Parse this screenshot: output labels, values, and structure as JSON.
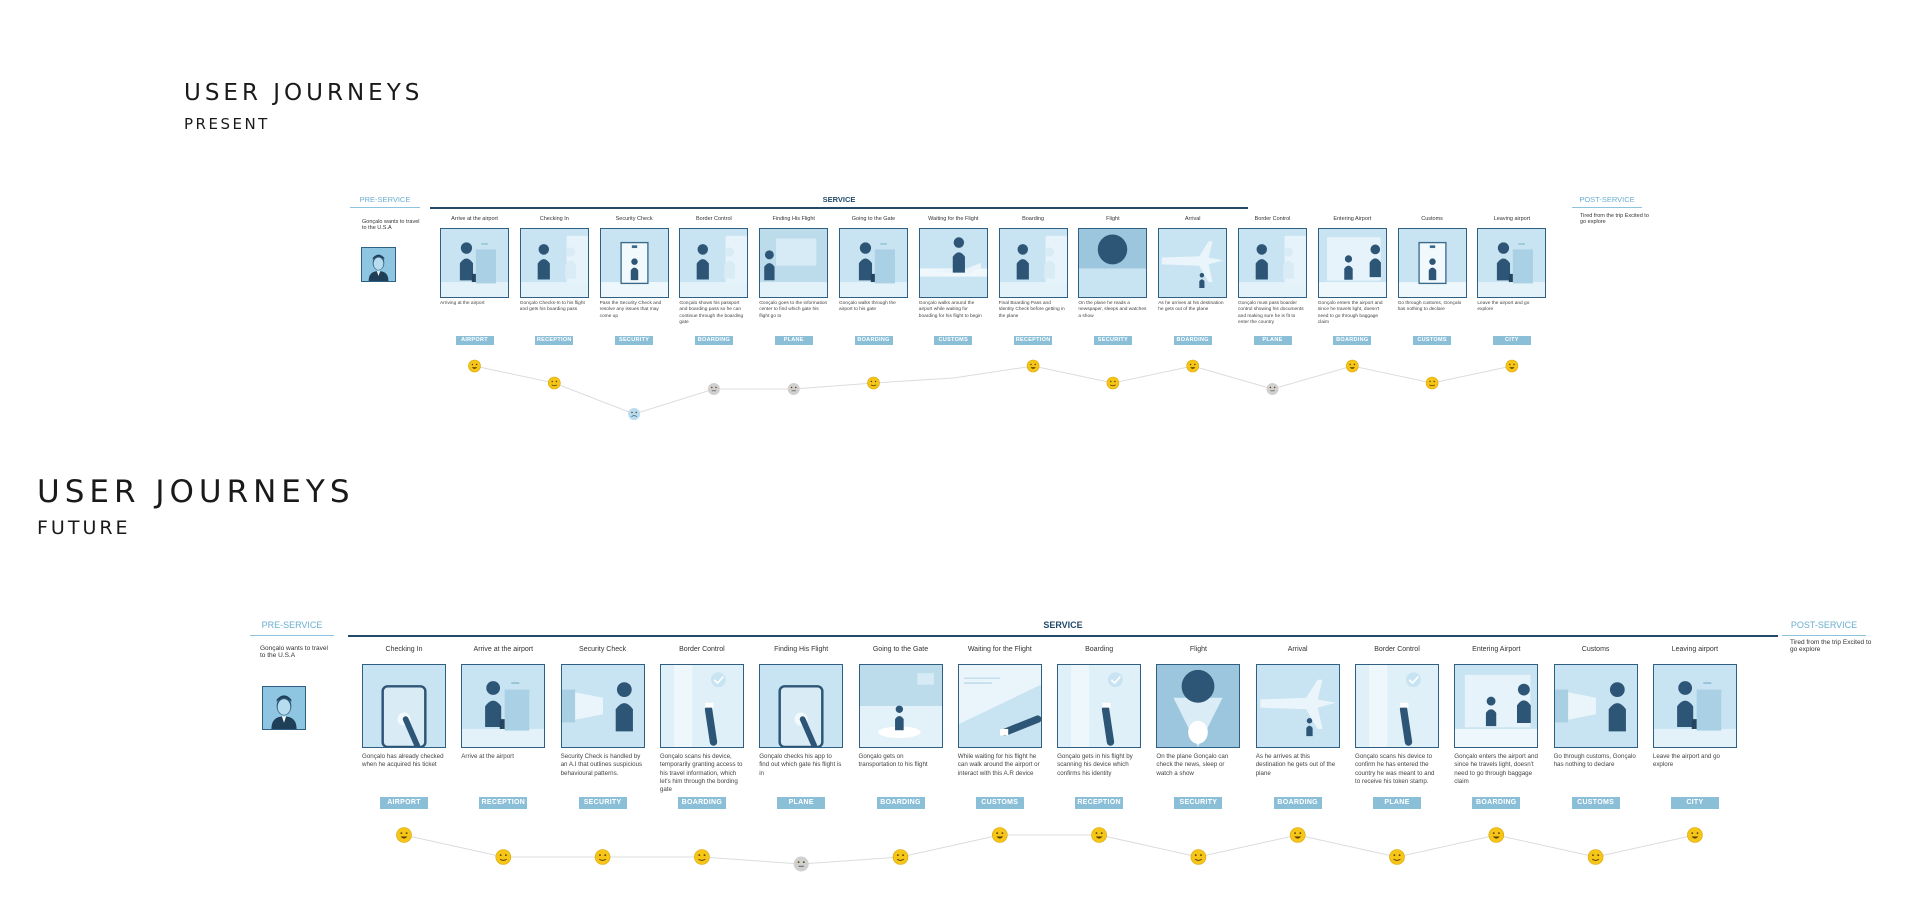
{
  "present": {
    "title": "USER JOURNEYS",
    "subtitle": "PRESENT",
    "pre_service": "PRE-SERVICE",
    "service": "SERVICE",
    "post_service": "POST-SERVICE",
    "pre_note": "Gonçalo wants to travel to the U.S.A",
    "post_note": "Tired from the trip Excited to go explore",
    "steps": [
      {
        "title": "Arrive at the airport",
        "desc": "Arriving at the airport",
        "tag": "AIRPORT",
        "mood": "happy",
        "scene": "figure-door"
      },
      {
        "title": "Checking In",
        "desc": "Gonçalo Checks-In to his flight and gets his boarding pass",
        "tag": "RECEPTION",
        "mood": "content",
        "scene": "two-figures"
      },
      {
        "title": "Security Check",
        "desc": "Pass the Security Check and resolve any issues that may come up",
        "tag": "SECURITY",
        "mood": "sad",
        "scene": "gate"
      },
      {
        "title": "Border Control",
        "desc": "Gonçalo shows his passport and boarding pass so he can continue through the boarding gate",
        "tag": "BOARDING",
        "mood": "neutral",
        "scene": "two-figures"
      },
      {
        "title": "Finding His Flight",
        "desc": "Gonçalo goes to the information center to find which gate his flight go to",
        "tag": "PLANE",
        "mood": "neutral",
        "scene": "board"
      },
      {
        "title": "Going to the Gate",
        "desc": "Gonçalo walks through the airport to his gate",
        "tag": "BOARDING",
        "mood": "content",
        "scene": "figure-door"
      },
      {
        "title": "Waiting for the Flight",
        "desc": "Gonçalo walks around the airport while waiting for boarding for his flight to begin",
        "tag": "CUSTOMS",
        "mood": "flat",
        "scene": "plane-window"
      },
      {
        "title": "Boarding",
        "desc": "Final Boarding Pass and Identity Check before getting in the plane",
        "tag": "RECEPTION",
        "mood": "happy",
        "scene": "two-figures"
      },
      {
        "title": "Flight",
        "desc": "On the plane he reads a newspaper, sleeps and watches a show",
        "tag": "SECURITY",
        "mood": "content",
        "scene": "seat"
      },
      {
        "title": "Arrival",
        "desc": "As he arrives at his destination he gets out of the plane",
        "tag": "BOARDING",
        "mood": "happy",
        "scene": "plane"
      },
      {
        "title": "Border Control",
        "desc": "Gonçalo must pass boarder control showing his documents and making sure he is fit to enter the country",
        "tag": "PLANE",
        "mood": "neutral",
        "scene": "two-figures"
      },
      {
        "title": "Entering Airport",
        "desc": "Gonçalo enters the airport and since he travels light, doesn't need to go through baggage claim",
        "tag": "BOARDING",
        "mood": "happy",
        "scene": "hall"
      },
      {
        "title": "Customs",
        "desc": "Go through customs, Gonçalo has nothing to declare",
        "tag": "CUSTOMS",
        "mood": "content",
        "scene": "gate"
      },
      {
        "title": "Leaving airport",
        "desc": "Leave the airport and go explore",
        "tag": "CITY",
        "mood": "happy",
        "scene": "figure-door"
      }
    ]
  },
  "future": {
    "title": "USER JOURNEYS",
    "subtitle": "FUTURE",
    "pre_service": "PRE-SERVICE",
    "service": "SERVICE",
    "post_service": "POST-SERVICE",
    "pre_note": "Gonçalo wants to travel to the U.S.A",
    "post_note": "Tired from the trip Excited to go explore",
    "steps": [
      {
        "title": "Checking In",
        "desc": "Gonçalo has already checked when he acquired his ticket",
        "tag": "AIRPORT",
        "mood": "happy",
        "scene": "phone"
      },
      {
        "title": "Arrive at the airport",
        "desc": "Arrive at the airport",
        "tag": "RECEPTION",
        "mood": "content",
        "scene": "figure-door"
      },
      {
        "title": "Security Check",
        "desc": "Security Check is handled by an A.I that outlines suspicious behavioural patterns.",
        "tag": "SECURITY",
        "mood": "content",
        "scene": "scan-figure"
      },
      {
        "title": "Border Control",
        "desc": "Gonçalo scans his device, temporarily granting access to his travel information, which let's him through the bording gate",
        "tag": "BOARDING",
        "mood": "content",
        "scene": "check-device"
      },
      {
        "title": "Finding His Flight",
        "desc": "Gonçalo checks his app to find out which gate his flight is in",
        "tag": "PLANE",
        "mood": "neutral",
        "scene": "phone"
      },
      {
        "title": "Going to the Gate",
        "desc": "Gonçalo gets on transportation to his flight",
        "tag": "BOARDING",
        "mood": "content",
        "scene": "transport"
      },
      {
        "title": "Waiting for the Flight",
        "desc": "While waiting for his flight he can walk around the airport or interact with this A.R device",
        "tag": "CUSTOMS",
        "mood": "happy",
        "scene": "ar-device"
      },
      {
        "title": "Boarding",
        "desc": "Gonçalo gets in his flight by scanning his device which confirms his identity",
        "tag": "RECEPTION",
        "mood": "happy",
        "scene": "check-device"
      },
      {
        "title": "Flight",
        "desc": "On the plane Gonçalo can check the news, sleep or watch a show",
        "tag": "SECURITY",
        "mood": "content",
        "scene": "seat-beam"
      },
      {
        "title": "Arrival",
        "desc": "As he arrives at this destination he gets out of the plane",
        "tag": "BOARDING",
        "mood": "happy",
        "scene": "plane"
      },
      {
        "title": "Border Control",
        "desc": "Gonçalo scans his device to confirm he has entered the country he was meant to and to receive his token stamp.",
        "tag": "PLANE",
        "mood": "content",
        "scene": "check-device"
      },
      {
        "title": "Entering Airport",
        "desc": "Gonçalo enters the airport and since he travels light, doesn't need to go through baggage claim",
        "tag": "BOARDING",
        "mood": "happy",
        "scene": "hall"
      },
      {
        "title": "Customs",
        "desc": "Go through customs, Gonçalo has nothing to declare",
        "tag": "CUSTOMS",
        "mood": "content",
        "scene": "scan-figure"
      },
      {
        "title": "Leaving airport",
        "desc": "Leave the airport and go explore",
        "tag": "CITY",
        "mood": "happy",
        "scene": "figure-door"
      }
    ]
  },
  "colors": {
    "dark_blue": "#244a6a",
    "figure": "#2d5576",
    "frame_bg": "#c8e3f1",
    "light_panel": "#e8f4fa",
    "tag_bg": "#8bbfd8",
    "phase_light": "#6aaecf",
    "emoji_yellow": "#f5c518",
    "emoji_grey": "#d0d0d0",
    "emoji_sad": "#b9dcef"
  }
}
